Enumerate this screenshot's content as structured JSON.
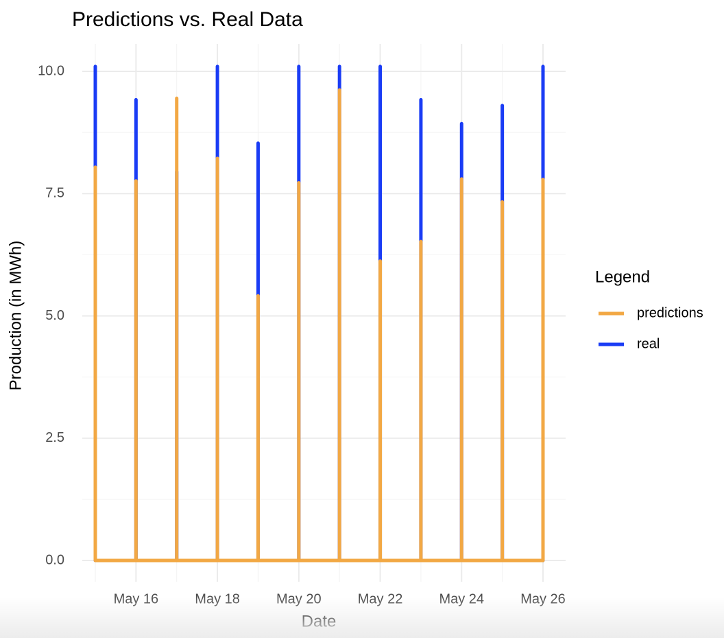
{
  "chart_data": {
    "type": "line",
    "title": "Predictions vs. Real Data",
    "x_label": "Date",
    "y_label": "Production (in MWh)",
    "legend_title": "Legend",
    "legend_position": "right",
    "grid": true,
    "x": [
      "May 15",
      "May 15",
      "May 15",
      "May 16",
      "May 16",
      "May 16",
      "May 17",
      "May 17",
      "May 17",
      "May 18",
      "May 18",
      "May 18",
      "May 19",
      "May 19",
      "May 19",
      "May 20",
      "May 20",
      "May 20",
      "May 21",
      "May 21",
      "May 21",
      "May 22",
      "May 22",
      "May 22",
      "May 23",
      "May 23",
      "May 23",
      "May 24",
      "May 24",
      "May 24",
      "May 25",
      "May 25",
      "May 25",
      "May 26",
      "May 26",
      "May 26"
    ],
    "series": [
      {
        "name": "real",
        "color": "#1a3cf5",
        "values": [
          0,
          10.1,
          0,
          0,
          9.42,
          0,
          0,
          7.95,
          0,
          0,
          10.1,
          0,
          0,
          8.53,
          0,
          0,
          10.1,
          0,
          0,
          10.1,
          0,
          0,
          10.1,
          0,
          0,
          9.42,
          0,
          0,
          8.93,
          0,
          0,
          9.3,
          0,
          0,
          10.1,
          0
        ]
      },
      {
        "name": "predictions",
        "color": "#f2a844",
        "values": [
          0,
          8.04,
          0,
          0,
          7.76,
          0,
          0,
          9.45,
          0,
          0,
          8.22,
          0,
          0,
          5.41,
          0,
          0,
          7.72,
          0,
          0,
          9.62,
          0,
          0,
          6.12,
          0,
          0,
          6.52,
          0,
          0,
          7.8,
          0,
          0,
          7.33,
          0,
          0,
          7.79,
          0
        ]
      }
    ],
    "legend_order": [
      1,
      0
    ],
    "xlim": [
      "May 15",
      "May 26"
    ],
    "xticks": [
      "May 16",
      "May 18",
      "May 20",
      "May 22",
      "May 24",
      "May 26"
    ],
    "ylim": [
      0,
      10
    ],
    "yticks": [
      {
        "value": 0,
        "label": "0.0"
      },
      2.5,
      {
        "value": 5,
        "label": "5.0"
      },
      7.5,
      {
        "value": 10,
        "label": "10.0"
      }
    ]
  }
}
